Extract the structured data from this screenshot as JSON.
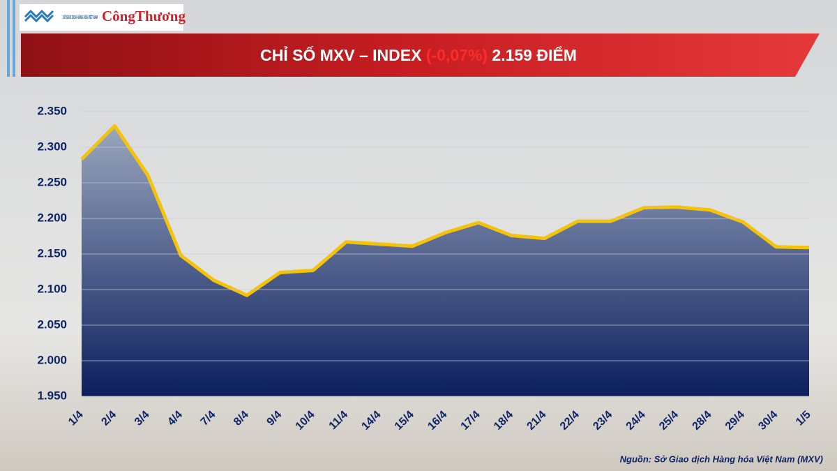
{
  "header": {
    "logo_text": "SỞ GIAO DỊCH HÀNG HÓA VIỆT NAM",
    "brand": "CôngThương"
  },
  "chart_data": {
    "type": "line",
    "title": {
      "prefix": "CHỈ SỐ MXV – INDEX",
      "change": "(-0,07%)",
      "value": "2.159 ĐIỂM"
    },
    "categories": [
      "1/4",
      "2/4",
      "3/4",
      "4/4",
      "7/4",
      "8/4",
      "9/4",
      "10/4",
      "11/4",
      "14/4",
      "15/4",
      "16/4",
      "17/4",
      "18/4",
      "21/4",
      "22/4",
      "23/4",
      "24/4",
      "25/4",
      "28/4",
      "29/4",
      "30/4",
      "1/5"
    ],
    "values": [
      2283,
      2330,
      2261,
      2148,
      2113,
      2092,
      2124,
      2127,
      2167,
      2164,
      2161,
      2180,
      2194,
      2176,
      2172,
      2196,
      2196,
      2215,
      2216,
      2212,
      2195,
      2160,
      2159
    ],
    "color": "#f5c20a",
    "area_colors": [
      "#9aa6bd",
      "#0b1f5e"
    ],
    "ylim": [
      1950,
      2350
    ],
    "yticks": [
      {
        "value": 1950,
        "label": "1.950"
      },
      {
        "value": 2000,
        "label": "2.000"
      },
      {
        "value": 2050,
        "label": "2.050"
      },
      {
        "value": 2100,
        "label": "2.100"
      },
      {
        "value": 2150,
        "label": "2.150"
      },
      {
        "value": 2200,
        "label": "2.200"
      },
      {
        "value": 2250,
        "label": "2.250"
      },
      {
        "value": 2300,
        "label": "2.300"
      },
      {
        "value": 2350,
        "label": "2.350"
      }
    ],
    "grid": true,
    "source": "Nguồn: Sở Giao dịch Hàng hóa Việt Nam (MXV)"
  }
}
